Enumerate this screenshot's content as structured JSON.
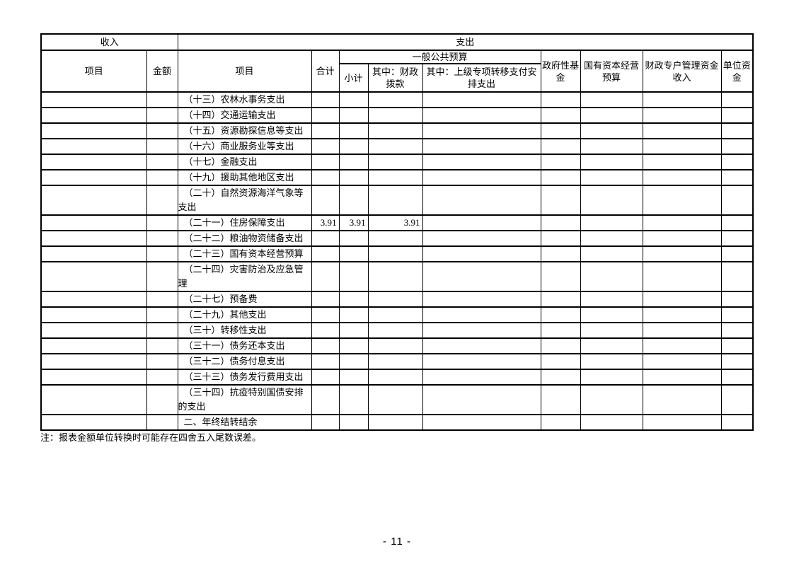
{
  "page": {
    "note": "注：报表金额单位转换时可能存在四舍五入尾数误差。",
    "page_number": "- 11 -"
  },
  "table": {
    "header": {
      "income": "收入",
      "expense": "支出",
      "item_income": "项目",
      "amount": "金额",
      "item_expense": "项目",
      "total": "合计",
      "general_public_budget": "一般公共预算",
      "subtotal": "小计",
      "fiscal_appropriation": "其中：财政拨款",
      "superior_transfer": "其中：上级专项转移支付安排支出",
      "government_fund": "政府性基金",
      "state_capital_budget": "国有资本经营预算",
      "special_account_income": "财政专户管理资金收入",
      "unit_fund": "单位资金"
    },
    "rows": [
      {
        "income_item": "",
        "income_amount": "",
        "expense_item": "（十三）农林水事务支出",
        "total": "",
        "subtotal": "",
        "fiscal": "",
        "transfer": "",
        "gov_fund": "",
        "state_capital": "",
        "special_account": "",
        "unit_fund": ""
      },
      {
        "income_item": "",
        "income_amount": "",
        "expense_item": "（十四）交通运输支出",
        "total": "",
        "subtotal": "",
        "fiscal": "",
        "transfer": "",
        "gov_fund": "",
        "state_capital": "",
        "special_account": "",
        "unit_fund": ""
      },
      {
        "income_item": "",
        "income_amount": "",
        "expense_item": "（十五）资源勘探信息等支出",
        "total": "",
        "subtotal": "",
        "fiscal": "",
        "transfer": "",
        "gov_fund": "",
        "state_capital": "",
        "special_account": "",
        "unit_fund": ""
      },
      {
        "income_item": "",
        "income_amount": "",
        "expense_item": "（十六）商业服务业等支出",
        "total": "",
        "subtotal": "",
        "fiscal": "",
        "transfer": "",
        "gov_fund": "",
        "state_capital": "",
        "special_account": "",
        "unit_fund": ""
      },
      {
        "income_item": "",
        "income_amount": "",
        "expense_item": "（十七）金融支出",
        "total": "",
        "subtotal": "",
        "fiscal": "",
        "transfer": "",
        "gov_fund": "",
        "state_capital": "",
        "special_account": "",
        "unit_fund": ""
      },
      {
        "income_item": "",
        "income_amount": "",
        "expense_item": "（十九）援助其他地区支出",
        "total": "",
        "subtotal": "",
        "fiscal": "",
        "transfer": "",
        "gov_fund": "",
        "state_capital": "",
        "special_account": "",
        "unit_fund": ""
      },
      {
        "income_item": "",
        "income_amount": "",
        "expense_item": "（二十）自然资源海洋气象等支出",
        "total": "",
        "subtotal": "",
        "fiscal": "",
        "transfer": "",
        "gov_fund": "",
        "state_capital": "",
        "special_account": "",
        "unit_fund": ""
      },
      {
        "income_item": "",
        "income_amount": "",
        "expense_item": "（二十一）住房保障支出",
        "total": "3.91",
        "subtotal": "3.91",
        "fiscal": "3.91",
        "transfer": "",
        "gov_fund": "",
        "state_capital": "",
        "special_account": "",
        "unit_fund": ""
      },
      {
        "income_item": "",
        "income_amount": "",
        "expense_item": "（二十二）粮油物资储备支出",
        "total": "",
        "subtotal": "",
        "fiscal": "",
        "transfer": "",
        "gov_fund": "",
        "state_capital": "",
        "special_account": "",
        "unit_fund": ""
      },
      {
        "income_item": "",
        "income_amount": "",
        "expense_item": "（二十三）国有资本经营预算",
        "total": "",
        "subtotal": "",
        "fiscal": "",
        "transfer": "",
        "gov_fund": "",
        "state_capital": "",
        "special_account": "",
        "unit_fund": ""
      },
      {
        "income_item": "",
        "income_amount": "",
        "expense_item": "（二十四）灾害防治及应急管理",
        "total": "",
        "subtotal": "",
        "fiscal": "",
        "transfer": "",
        "gov_fund": "",
        "state_capital": "",
        "special_account": "",
        "unit_fund": ""
      },
      {
        "income_item": "",
        "income_amount": "",
        "expense_item": "（二十七）预备费",
        "total": "",
        "subtotal": "",
        "fiscal": "",
        "transfer": "",
        "gov_fund": "",
        "state_capital": "",
        "special_account": "",
        "unit_fund": ""
      },
      {
        "income_item": "",
        "income_amount": "",
        "expense_item": "（二十九）其他支出",
        "total": "",
        "subtotal": "",
        "fiscal": "",
        "transfer": "",
        "gov_fund": "",
        "state_capital": "",
        "special_account": "",
        "unit_fund": ""
      },
      {
        "income_item": "",
        "income_amount": "",
        "expense_item": "（三十）转移性支出",
        "total": "",
        "subtotal": "",
        "fiscal": "",
        "transfer": "",
        "gov_fund": "",
        "state_capital": "",
        "special_account": "",
        "unit_fund": ""
      },
      {
        "income_item": "",
        "income_amount": "",
        "expense_item": "（三十一）债务还本支出",
        "total": "",
        "subtotal": "",
        "fiscal": "",
        "transfer": "",
        "gov_fund": "",
        "state_capital": "",
        "special_account": "",
        "unit_fund": ""
      },
      {
        "income_item": "",
        "income_amount": "",
        "expense_item": "（三十二）债务付息支出",
        "total": "",
        "subtotal": "",
        "fiscal": "",
        "transfer": "",
        "gov_fund": "",
        "state_capital": "",
        "special_account": "",
        "unit_fund": ""
      },
      {
        "income_item": "",
        "income_amount": "",
        "expense_item": "（三十三）债务发行费用支出",
        "total": "",
        "subtotal": "",
        "fiscal": "",
        "transfer": "",
        "gov_fund": "",
        "state_capital": "",
        "special_account": "",
        "unit_fund": ""
      },
      {
        "income_item": "",
        "income_amount": "",
        "expense_item": "（三十四）抗疫特别国债安排的支出",
        "total": "",
        "subtotal": "",
        "fiscal": "",
        "transfer": "",
        "gov_fund": "",
        "state_capital": "",
        "special_account": "",
        "unit_fund": ""
      },
      {
        "income_item": "",
        "income_amount": "",
        "expense_item": "二、年终结转结余",
        "total": "",
        "subtotal": "",
        "fiscal": "",
        "transfer": "",
        "gov_fund": "",
        "state_capital": "",
        "special_account": "",
        "unit_fund": ""
      }
    ]
  }
}
